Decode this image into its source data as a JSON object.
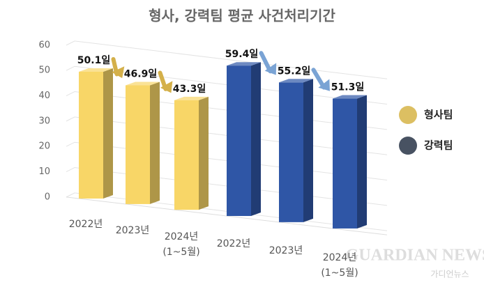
{
  "chart_data": {
    "type": "bar3d",
    "title": "형사, 강력팀 평균 사건처리기간",
    "categories": [
      "2022년",
      "2023년",
      "2024년\n(1~5월)",
      "2022년",
      "2023년",
      "2024년\n(1~5월)"
    ],
    "series": [
      {
        "name": "형사팀",
        "color": "#f8d667",
        "legend_color": "#dcbf62",
        "values": [
          50.1,
          46.9,
          43.3,
          null,
          null,
          null
        ],
        "value_labels": [
          "50.1일",
          "46.9일",
          "43.3일",
          null,
          null,
          null
        ]
      },
      {
        "name": "강력팀",
        "color": "#2f56a6",
        "legend_color": "#485262",
        "values": [
          null,
          null,
          null,
          59.4,
          55.2,
          51.3
        ],
        "value_labels": [
          null,
          null,
          null,
          "59.4일",
          "55.2일",
          "51.3일"
        ]
      }
    ],
    "ylim": [
      0,
      60
    ],
    "yticks": [
      0,
      10,
      20,
      30,
      40,
      50,
      60
    ],
    "grid": true,
    "legend": "right"
  },
  "watermark": {
    "title": "GUARDIAN NEWS",
    "subtitle": "가디언뉴스"
  }
}
